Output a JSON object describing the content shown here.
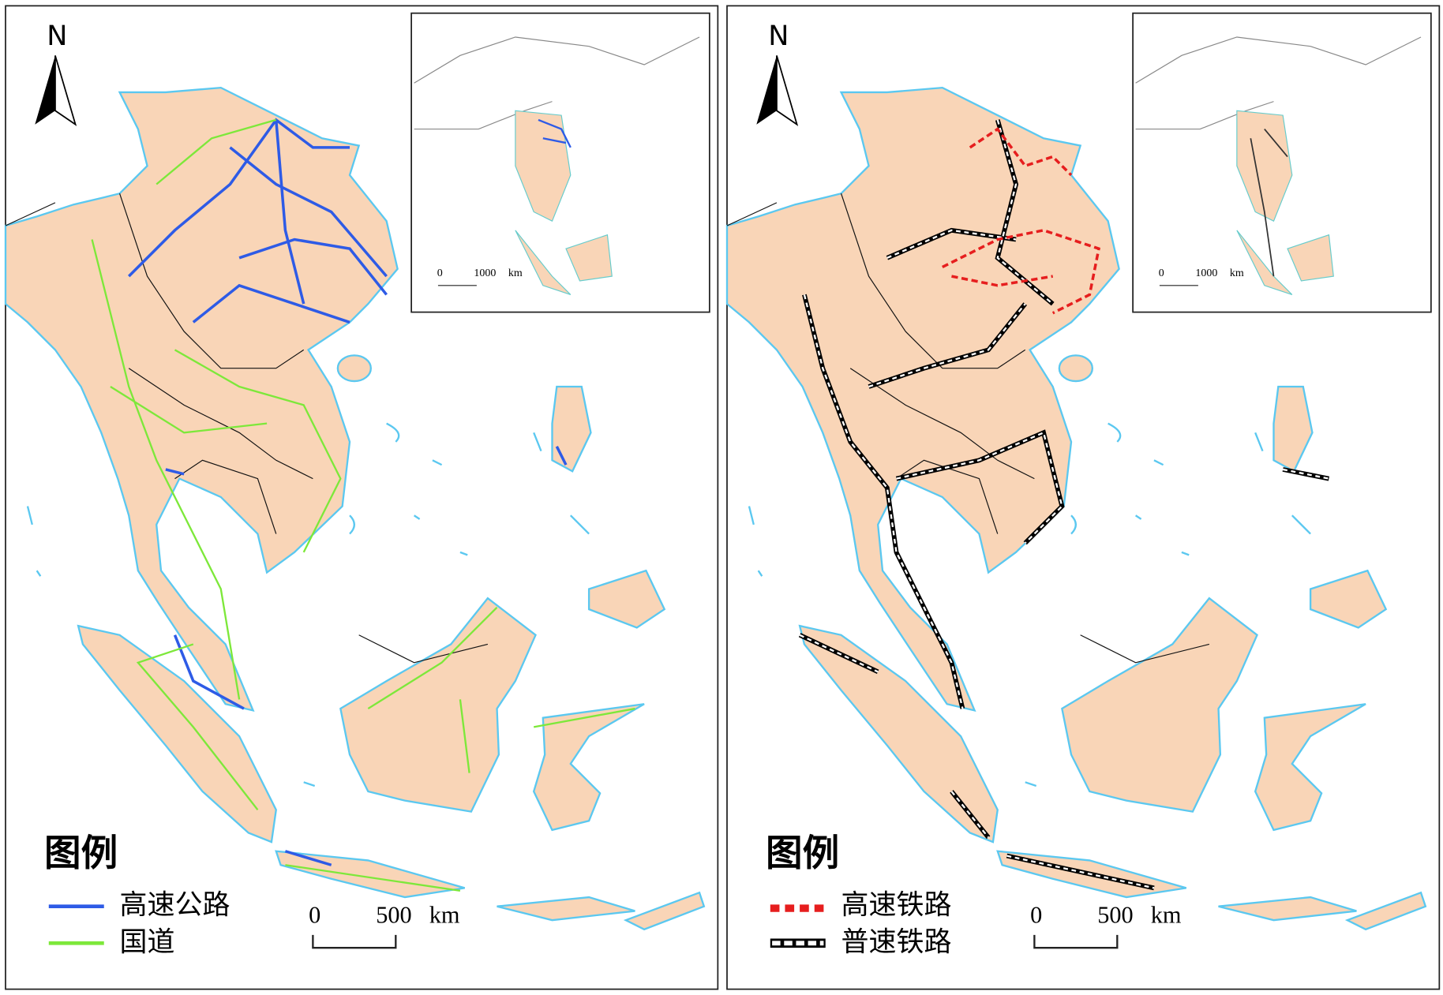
{
  "panels": [
    {
      "north": "N",
      "legend": {
        "title": "图例",
        "items": [
          "高速公路",
          "国道"
        ]
      },
      "scale_bar": [
        "0",
        "500",
        "km"
      ],
      "inset": {
        "scale_bar": [
          "0",
          "1000",
          "km"
        ]
      }
    },
    {
      "north": "N",
      "legend": {
        "title": "图例",
        "items": [
          "高速铁路",
          "普速铁路"
        ]
      },
      "scale_bar": [
        "0",
        "500",
        "km"
      ],
      "inset": {
        "scale_bar": [
          "0",
          "1000",
          "km"
        ]
      }
    }
  ]
}
